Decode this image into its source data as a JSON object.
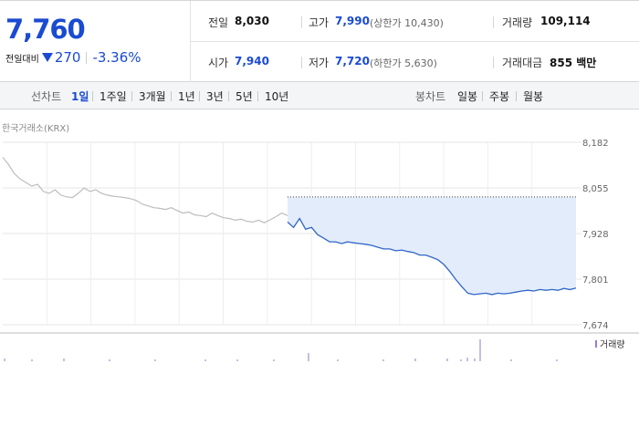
{
  "price": {
    "current": "7,760",
    "change_label": "전일대비",
    "change_value": "270",
    "change_pct": "-3.36%",
    "direction_icon": "down-triangle-icon",
    "color": "#1a4bd0"
  },
  "stats": {
    "prev_close_label": "전일",
    "prev_close": "8,030",
    "high_label": "고가",
    "high": "7,990",
    "upper_limit": "(상한가 10,430)",
    "volume_label": "거래량",
    "volume": "109,114",
    "open_label": "시가",
    "open": "7,940",
    "low_label": "저가",
    "low": "7,720",
    "lower_limit": "(하한가 5,630)",
    "turnover_label": "거래대금",
    "turnover": "855 백만"
  },
  "period": {
    "line_label": "선차트",
    "line_items": [
      "1일",
      "1주일",
      "3개월",
      "1년",
      "3년",
      "5년",
      "10년"
    ],
    "active_index": 0,
    "candle_label": "봉차트",
    "candle_items": [
      "일봉",
      "주봉",
      "월봉"
    ]
  },
  "chart_data": {
    "type": "line",
    "source": "한국거래소(KRX)",
    "yticks": [
      "8,182",
      "8,055",
      "7,928",
      "7,801",
      "7,674"
    ],
    "ylim": [
      7674,
      8182
    ],
    "prev_day_close": 8030,
    "series": [
      {
        "style": "previous-day (gray)",
        "values": [
          8140,
          8120,
          8095,
          8080,
          8070,
          8060,
          8065,
          8045,
          8040,
          8050,
          8035,
          8030,
          8028,
          8040,
          8055,
          8045,
          8050,
          8040,
          8035,
          8032,
          8030,
          8028,
          8025,
          8020,
          8010,
          8005,
          8000,
          7998,
          7995,
          8000,
          7992,
          7985,
          7988,
          7980,
          7978,
          7975,
          7985,
          7978,
          7972,
          7970,
          7965,
          7968,
          7962,
          7960,
          7965,
          7958,
          7966,
          7975,
          7985,
          7978
        ]
      },
      {
        "style": "current-day (blue, shaded vs previous close)",
        "values": [
          7960,
          7945,
          7970,
          7940,
          7945,
          7925,
          7915,
          7905,
          7905,
          7900,
          7905,
          7902,
          7900,
          7898,
          7895,
          7890,
          7885,
          7885,
          7880,
          7882,
          7878,
          7875,
          7868,
          7868,
          7862,
          7855,
          7842,
          7822,
          7800,
          7780,
          7762,
          7758,
          7760,
          7762,
          7758,
          7762,
          7760,
          7762,
          7765,
          7768,
          7770,
          7768,
          7772,
          7770,
          7772,
          7770,
          7775,
          7772,
          7776
        ]
      }
    ],
    "volume_legend": "거래량"
  }
}
